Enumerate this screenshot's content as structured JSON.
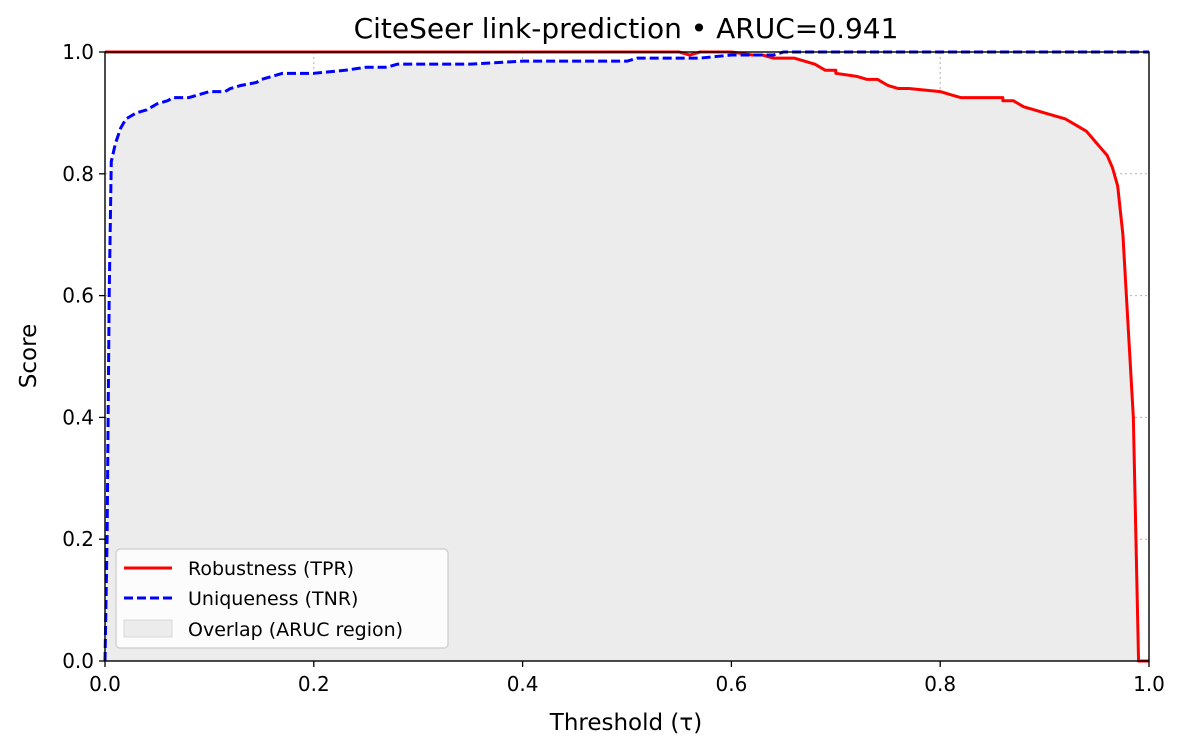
{
  "chart_data": {
    "type": "line",
    "title": "CiteSeer link-prediction • ARUC=0.941",
    "xlabel": "Threshold (τ)",
    "ylabel": "Score",
    "xlim": [
      0.0,
      1.0
    ],
    "ylim": [
      0.0,
      1.0
    ],
    "xticks": [
      "0.0",
      "0.2",
      "0.4",
      "0.6",
      "0.8",
      "1.0"
    ],
    "yticks": [
      "0.0",
      "0.2",
      "0.4",
      "0.6",
      "0.8",
      "1.0"
    ],
    "grid": true,
    "legend_position": "lower-left",
    "series": [
      {
        "name": "Robustness (TPR)",
        "color": "#ff0000",
        "style": "solid",
        "x": [
          0,
          0.55,
          0.56,
          0.57,
          0.6,
          0.62,
          0.63,
          0.64,
          0.66,
          0.68,
          0.69,
          0.7,
          0.7,
          0.72,
          0.73,
          0.74,
          0.75,
          0.76,
          0.77,
          0.8,
          0.81,
          0.82,
          0.86,
          0.86,
          0.87,
          0.88,
          0.89,
          0.9,
          0.91,
          0.92,
          0.93,
          0.94,
          0.945,
          0.95,
          0.955,
          0.96,
          0.965,
          0.97,
          0.975,
          0.98,
          0.985,
          0.99,
          0.995,
          1.0
        ],
        "y": [
          1.0,
          1.0,
          0.995,
          1.0,
          1.0,
          0.995,
          0.995,
          0.99,
          0.99,
          0.98,
          0.97,
          0.97,
          0.965,
          0.96,
          0.955,
          0.955,
          0.945,
          0.94,
          0.94,
          0.935,
          0.93,
          0.925,
          0.925,
          0.92,
          0.92,
          0.91,
          0.905,
          0.9,
          0.895,
          0.89,
          0.88,
          0.87,
          0.86,
          0.85,
          0.84,
          0.83,
          0.81,
          0.78,
          0.7,
          0.55,
          0.4,
          0.0,
          0.0,
          0.0
        ]
      },
      {
        "name": "Uniqueness (TNR)",
        "color": "#0000ff",
        "style": "dashed",
        "x": [
          0.0,
          0.002,
          0.004,
          0.006,
          0.01,
          0.015,
          0.02,
          0.03,
          0.04,
          0.045,
          0.05,
          0.06,
          0.065,
          0.08,
          0.09,
          0.1,
          0.115,
          0.12,
          0.13,
          0.145,
          0.15,
          0.16,
          0.17,
          0.2,
          0.23,
          0.25,
          0.27,
          0.28,
          0.3,
          0.35,
          0.4,
          0.45,
          0.5,
          0.51,
          0.55,
          0.57,
          0.6,
          0.62,
          0.64,
          0.65,
          0.7,
          0.71,
          0.75,
          1.0
        ],
        "y": [
          0.0,
          0.2,
          0.6,
          0.82,
          0.85,
          0.875,
          0.89,
          0.9,
          0.905,
          0.91,
          0.915,
          0.92,
          0.925,
          0.925,
          0.93,
          0.935,
          0.935,
          0.94,
          0.945,
          0.95,
          0.955,
          0.96,
          0.965,
          0.965,
          0.97,
          0.975,
          0.975,
          0.98,
          0.98,
          0.98,
          0.985,
          0.985,
          0.985,
          0.99,
          0.99,
          0.99,
          0.995,
          0.995,
          0.995,
          1.0,
          1.0,
          1.0,
          1.0,
          1.0
        ]
      }
    ],
    "fill": {
      "name": "Overlap (ARUC region)",
      "color": "#d3d3d3",
      "description_series": "min of the two curves"
    }
  }
}
